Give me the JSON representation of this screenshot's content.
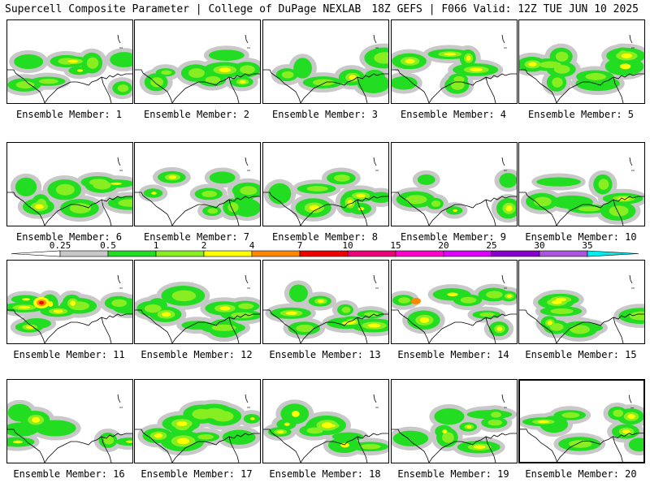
{
  "header": {
    "title_left": "Supercell Composite Parameter | College of DuPage NEXLAB",
    "title_right": "18Z GEFS | F066 Valid: 12Z TUE JUN 10 2025"
  },
  "legend": {
    "labels": [
      "0.25",
      "0.5",
      "1",
      "2",
      "4",
      "7",
      "10",
      "15",
      "20",
      "25",
      "30",
      "35"
    ],
    "colors": [
      "#c8c8c8",
      "#22dd22",
      "#88ee22",
      "#ffff00",
      "#ff8800",
      "#ee0000",
      "#ee0077",
      "#ff00cc",
      "#dd00ff",
      "#8800cc",
      "#aa55dd",
      "#00eeee"
    ]
  },
  "members": [
    {
      "label": "Ensemble Member: 1"
    },
    {
      "label": "Ensemble Member: 2"
    },
    {
      "label": "Ensemble Member: 3"
    },
    {
      "label": "Ensemble Member: 4"
    },
    {
      "label": "Ensemble Member: 5"
    },
    {
      "label": "Ensemble Member: 6"
    },
    {
      "label": "Ensemble Member: 7"
    },
    {
      "label": "Ensemble Member: 8"
    },
    {
      "label": "Ensemble Member: 9"
    },
    {
      "label": "Ensemble Member: 10"
    },
    {
      "label": "Ensemble Member: 11"
    },
    {
      "label": "Ensemble Member: 12"
    },
    {
      "label": "Ensemble Member: 13"
    },
    {
      "label": "Ensemble Member: 14"
    },
    {
      "label": "Ensemble Member: 15"
    },
    {
      "label": "Ensemble Member: 16"
    },
    {
      "label": "Ensemble Member: 17"
    },
    {
      "label": "Ensemble Member: 18"
    },
    {
      "label": "Ensemble Member: 19"
    },
    {
      "label": "Ensemble Member: 20",
      "selected": true
    }
  ]
}
